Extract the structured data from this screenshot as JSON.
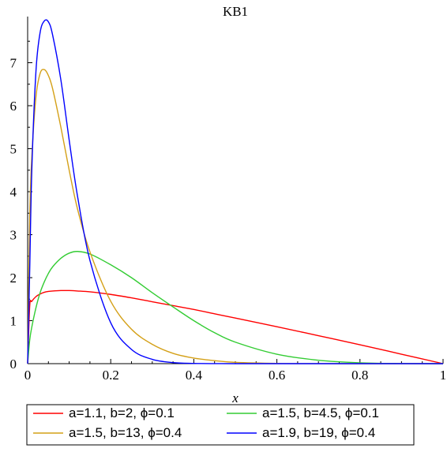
{
  "chart_data": {
    "type": "line",
    "title": "KB1",
    "xlabel": "x",
    "ylabel": "",
    "xlim": [
      0,
      1
    ],
    "ylim": [
      0,
      8
    ],
    "xticks": [
      "0",
      "0.2",
      "0.4",
      "0.6",
      "0.8",
      "1"
    ],
    "yticks": [
      "0",
      "1",
      "2",
      "3",
      "4",
      "5",
      "6",
      "7"
    ],
    "legend_position": "bottom",
    "x": [
      0,
      0.005,
      0.01,
      0.02,
      0.03,
      0.04,
      0.05,
      0.06,
      0.08,
      0.1,
      0.12,
      0.15,
      0.2,
      0.25,
      0.3,
      0.35,
      0.4,
      0.45,
      0.5,
      0.6,
      0.7,
      0.8,
      0.9,
      1.0
    ],
    "series": [
      {
        "name": "a=1.1, b=2, ϕ=0.1",
        "color": "#ff0000",
        "values": [
          0,
          1.34,
          1.45,
          1.56,
          1.62,
          1.66,
          1.68,
          1.69,
          1.7,
          1.7,
          1.69,
          1.67,
          1.61,
          1.53,
          1.44,
          1.35,
          1.26,
          1.16,
          1.06,
          0.86,
          0.65,
          0.44,
          0.22,
          0
        ]
      },
      {
        "name": "a=1.5, b=4.5, ϕ=0.1",
        "color": "#33cc33",
        "values": [
          0,
          0.55,
          0.85,
          1.3,
          1.65,
          1.9,
          2.1,
          2.25,
          2.45,
          2.57,
          2.61,
          2.55,
          2.3,
          2.0,
          1.65,
          1.32,
          1.0,
          0.72,
          0.5,
          0.22,
          0.08,
          0.02,
          0.003,
          0
        ]
      },
      {
        "name": "a=1.5, b=13, ϕ=0.4",
        "color": "#d4a017",
        "values": [
          0,
          3.4,
          4.8,
          6.2,
          6.75,
          6.84,
          6.7,
          6.4,
          5.5,
          4.5,
          3.6,
          2.6,
          1.45,
          0.8,
          0.45,
          0.24,
          0.13,
          0.07,
          0.03,
          0.005,
          0.0005,
          0,
          0,
          0
        ]
      },
      {
        "name": "a=1.9, b=19, ϕ=0.4",
        "color": "#0000ff",
        "values": [
          0,
          2.2,
          4.5,
          6.8,
          7.7,
          7.97,
          7.95,
          7.65,
          6.6,
          5.2,
          3.9,
          2.4,
          0.95,
          0.33,
          0.1,
          0.025,
          0.006,
          0.001,
          0,
          0,
          0,
          0,
          0,
          0
        ]
      }
    ]
  }
}
